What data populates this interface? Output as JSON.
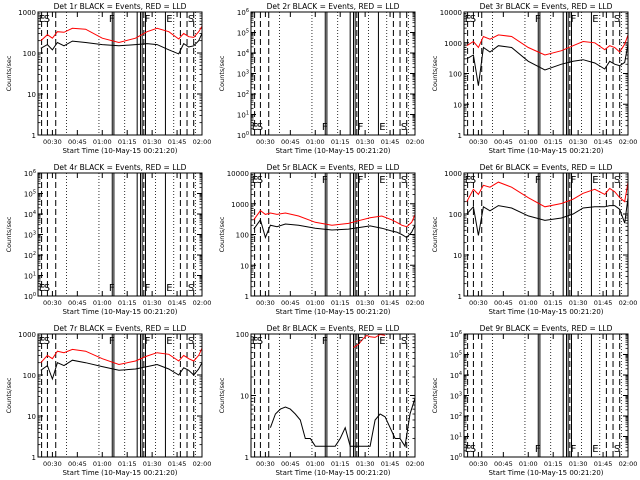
{
  "colors": {
    "events": "#000000",
    "lld": "#ff0000",
    "axes": "#000000",
    "background": "#ffffff"
  },
  "common": {
    "ylabel": "Counts/sec",
    "xlabel": "Start Time (10-May-15 00:21:20)",
    "xticks": [
      "00:30",
      "00:45",
      "01:00",
      "01:15",
      "01:30",
      "01:45",
      "02:00"
    ]
  },
  "chart_data": [
    {
      "type": "line",
      "title": "Det 1r BLACK = Events, RED = LLD",
      "ylabel": "Counts/sec",
      "xlabel": "Start Time (10-May-15 00:21:20)",
      "x_range": [
        "00:21:20",
        "02:00"
      ],
      "y_scale": "log",
      "ylim": [
        1,
        1000
      ],
      "yticks": [
        "1",
        "10",
        "100",
        "1000"
      ],
      "grid": false,
      "annotations": [
        "E",
        "S",
        "F",
        "F",
        "E",
        "S"
      ],
      "series": [
        {
          "color": "#000000",
          "x": [
            "00:23",
            "00:27",
            "00:30",
            "00:33",
            "00:37",
            "00:42",
            "00:50",
            "01:00",
            "01:10",
            "01:20",
            "01:27",
            "01:33",
            "01:40",
            "01:46",
            "01:49",
            "01:52",
            "01:55",
            "01:58",
            "02:00"
          ],
          "y": [
            130,
            160,
            120,
            180,
            150,
            195,
            180,
            160,
            150,
            160,
            170,
            160,
            120,
            95,
            170,
            140,
            150,
            200,
            300
          ]
        },
        {
          "color": "#ff0000",
          "x": [
            "00:23",
            "00:27",
            "00:30",
            "00:33",
            "00:37",
            "00:42",
            "00:50",
            "01:00",
            "01:10",
            "01:20",
            "01:27",
            "01:33",
            "01:40",
            "01:46",
            "01:49",
            "01:52",
            "01:55",
            "01:58",
            "02:00"
          ],
          "y": [
            200,
            280,
            230,
            330,
            320,
            400,
            380,
            230,
            180,
            230,
            330,
            400,
            330,
            220,
            300,
            250,
            240,
            330,
            450
          ]
        }
      ]
    },
    {
      "type": "line",
      "title": "Det 2r BLACK = Events, RED = LLD",
      "ylabel": "Counts/sec",
      "xlabel": "Start Time (10-May-15 00:21:20)",
      "x_range": [
        "00:21:20",
        "02:00"
      ],
      "y_scale": "log",
      "ylim": [
        1,
        1000000
      ],
      "yticks": [
        "10^0",
        "10^1",
        "10^2",
        "10^3",
        "10^4",
        "10^5",
        "10^6"
      ],
      "grid": false,
      "annotations": [
        "E",
        "S",
        "F",
        "F",
        "E",
        "S"
      ],
      "series": []
    },
    {
      "type": "line",
      "title": "Det 3r BLACK = Events, RED = LLD",
      "ylabel": "Counts/sec",
      "xlabel": "Start Time (10-May-15 00:21:20)",
      "x_range": [
        "00:21:20",
        "02:00"
      ],
      "y_scale": "log",
      "ylim": [
        1,
        10000
      ],
      "yticks": [
        "1",
        "10",
        "100",
        "1000",
        "10000"
      ],
      "grid": false,
      "annotations": [
        "E",
        "S",
        "F",
        "F",
        "E",
        "S"
      ],
      "series": [
        {
          "color": "#000000",
          "x": [
            "00:23",
            "00:27",
            "00:30",
            "00:33",
            "00:37",
            "00:42",
            "00:50",
            "01:00",
            "01:10",
            "01:20",
            "01:27",
            "01:33",
            "01:40",
            "01:46",
            "01:49",
            "01:52",
            "01:55",
            "01:58",
            "02:00"
          ],
          "y": [
            300,
            400,
            40,
            700,
            500,
            800,
            700,
            250,
            130,
            200,
            250,
            280,
            220,
            140,
            250,
            200,
            180,
            230,
            900
          ]
        },
        {
          "color": "#ff0000",
          "x": [
            "00:23",
            "00:27",
            "00:30",
            "00:33",
            "00:37",
            "00:42",
            "00:50",
            "01:00",
            "01:10",
            "01:20",
            "01:27",
            "01:33",
            "01:40",
            "01:46",
            "01:49",
            "01:52",
            "01:55",
            "01:58",
            "02:00"
          ],
          "y": [
            800,
            1100,
            700,
            1600,
            1300,
            1800,
            1600,
            700,
            400,
            550,
            800,
            1100,
            1000,
            600,
            800,
            700,
            500,
            900,
            1800
          ]
        }
      ]
    },
    {
      "type": "line",
      "title": "Det 4r BLACK = Events, RED = LLD",
      "ylabel": "Counts/sec",
      "xlabel": "Start Time (10-May-15 00:21:20)",
      "x_range": [
        "00:21:20",
        "02:00"
      ],
      "y_scale": "log",
      "ylim": [
        1,
        1000000
      ],
      "yticks": [
        "10^0",
        "10^1",
        "10^2",
        "10^3",
        "10^4",
        "10^5",
        "10^6"
      ],
      "grid": false,
      "annotations": [
        "E",
        "S",
        "F",
        "F",
        "E",
        "S"
      ],
      "series": []
    },
    {
      "type": "line",
      "title": "Det 5r BLACK = Events, RED = LLD",
      "ylabel": "Counts/sec",
      "xlabel": "Start Time (10-May-15 00:21:20)",
      "x_range": [
        "00:21:20",
        "02:00"
      ],
      "y_scale": "log",
      "ylim": [
        1,
        10000
      ],
      "yticks": [
        "1",
        "10",
        "100",
        "1000",
        "10000"
      ],
      "grid": false,
      "annotations": [
        "E",
        "S",
        "F",
        "F",
        "E",
        "S"
      ],
      "series": [
        {
          "color": "#000000",
          "x": [
            "00:23",
            "00:27",
            "00:30",
            "00:33",
            "00:37",
            "00:42",
            "00:50",
            "01:00",
            "01:10",
            "01:20",
            "01:27",
            "01:33",
            "01:40",
            "01:46",
            "01:49",
            "01:52",
            "01:55",
            "01:58",
            "02:00"
          ],
          "y": [
            150,
            300,
            80,
            200,
            180,
            220,
            200,
            160,
            140,
            150,
            170,
            190,
            160,
            130,
            120,
            100,
            80,
            120,
            200
          ]
        },
        {
          "color": "#ff0000",
          "x": [
            "00:23",
            "00:27",
            "00:30",
            "00:33",
            "00:37",
            "00:42",
            "00:50",
            "01:00",
            "01:10",
            "01:20",
            "01:27",
            "01:33",
            "01:40",
            "01:46",
            "01:49",
            "01:52",
            "01:55",
            "01:58",
            "02:00"
          ],
          "y": [
            300,
            600,
            450,
            500,
            450,
            500,
            400,
            250,
            200,
            230,
            290,
            350,
            400,
            300,
            250,
            200,
            180,
            250,
            450
          ]
        }
      ]
    },
    {
      "type": "line",
      "title": "Det 6r BLACK = Events, RED = LLD",
      "ylabel": "Counts/sec",
      "xlabel": "Start Time (10-May-15 00:21:20)",
      "x_range": [
        "00:21:20",
        "02:00"
      ],
      "y_scale": "log",
      "ylim": [
        1,
        1000
      ],
      "yticks": [
        "1",
        "10",
        "100",
        "1000"
      ],
      "grid": false,
      "annotations": [
        "E",
        "S",
        "F",
        "F",
        "E",
        "S"
      ],
      "series": [
        {
          "color": "#000000",
          "x": [
            "00:23",
            "00:27",
            "00:30",
            "00:33",
            "00:37",
            "00:42",
            "00:50",
            "01:00",
            "01:10",
            "01:20",
            "01:27",
            "01:33",
            "01:40",
            "01:46",
            "01:49",
            "01:52",
            "01:55",
            "01:58",
            "02:00"
          ],
          "y": [
            100,
            150,
            30,
            150,
            120,
            160,
            140,
            90,
            70,
            80,
            100,
            140,
            150,
            150,
            160,
            160,
            130,
            60,
            250
          ]
        },
        {
          "color": "#ff0000",
          "x": [
            "00:23",
            "00:27",
            "00:30",
            "00:33",
            "00:37",
            "00:42",
            "00:50",
            "01:00",
            "01:10",
            "01:20",
            "01:27",
            "01:33",
            "01:40",
            "01:46",
            "01:49",
            "01:52",
            "01:55",
            "01:58",
            "02:00"
          ],
          "y": [
            200,
            400,
            300,
            500,
            450,
            600,
            450,
            250,
            150,
            180,
            230,
            320,
            400,
            300,
            420,
            350,
            250,
            200,
            600
          ]
        }
      ]
    },
    {
      "type": "line",
      "title": "Det 7r BLACK = Events, RED = LLD",
      "ylabel": "Counts/sec",
      "xlabel": "Start Time (10-May-15 00:21:20)",
      "x_range": [
        "00:21:20",
        "02:00"
      ],
      "y_scale": "log",
      "ylim": [
        1,
        1000
      ],
      "yticks": [
        "1",
        "10",
        "100",
        "1000"
      ],
      "grid": false,
      "annotations": [
        "E",
        "S",
        "F",
        "F",
        "E",
        "S"
      ],
      "series": [
        {
          "color": "#000000",
          "x": [
            "00:23",
            "00:27",
            "00:30",
            "00:33",
            "00:37",
            "00:42",
            "00:50",
            "01:00",
            "01:10",
            "01:20",
            "01:27",
            "01:33",
            "01:40",
            "01:46",
            "01:49",
            "01:52",
            "01:55",
            "01:58",
            "02:00"
          ],
          "y": [
            130,
            170,
            80,
            200,
            170,
            230,
            200,
            160,
            130,
            140,
            160,
            180,
            140,
            100,
            150,
            130,
            100,
            140,
            200
          ]
        },
        {
          "color": "#ff0000",
          "x": [
            "00:23",
            "00:27",
            "00:30",
            "00:33",
            "00:37",
            "00:42",
            "00:50",
            "01:00",
            "01:10",
            "01:20",
            "01:27",
            "01:33",
            "01:40",
            "01:46",
            "01:49",
            "01:52",
            "01:55",
            "01:58",
            "02:00"
          ],
          "y": [
            200,
            300,
            250,
            380,
            350,
            420,
            380,
            250,
            180,
            220,
            290,
            350,
            320,
            220,
            300,
            250,
            220,
            300,
            450
          ]
        }
      ]
    },
    {
      "type": "line",
      "title": "Det 8r BLACK = Events, RED = LLD",
      "ylabel": "Counts/sec",
      "xlabel": "Start Time (10-May-15 00:21:20)",
      "x_range": [
        "00:21:20",
        "02:00"
      ],
      "y_scale": "log",
      "ylim": [
        1,
        100
      ],
      "yticks": [
        "1",
        "10",
        "100"
      ],
      "grid": false,
      "annotations": [
        "E",
        "S",
        "F",
        "F",
        "E",
        "S"
      ],
      "series": [
        {
          "color": "#000000",
          "x": [
            "00:33",
            "00:36",
            "00:39",
            "00:42",
            "00:45",
            "00:48",
            "00:51",
            "00:54",
            "00:57",
            "01:00",
            "01:03",
            "01:06",
            "01:09",
            "01:12",
            "01:15",
            "01:18",
            "01:21",
            "01:24",
            "01:27",
            "01:30",
            "01:33",
            "01:36",
            "01:39",
            "01:42",
            "01:45",
            "01:48",
            "01:51",
            "01:54",
            "01:57",
            "02:00"
          ],
          "y": [
            3,
            5,
            6,
            6.5,
            6,
            5,
            4,
            2,
            2,
            1.5,
            1.5,
            1.5,
            1.5,
            1.5,
            2,
            3,
            1.5,
            1.5,
            1.5,
            1.5,
            1.5,
            4,
            5,
            4.5,
            3,
            2,
            2,
            1.5,
            5,
            9
          ]
        },
        {
          "color": "#ff0000",
          "x": [
            "01:23",
            "01:26",
            "01:29",
            "01:31",
            "01:33",
            "01:36",
            "01:39",
            "01:42"
          ],
          "y": [
            60,
            68,
            85,
            95,
            90,
            88,
            98,
            95
          ]
        }
      ]
    },
    {
      "type": "line",
      "title": "Det 9r BLACK = Events, RED = LLD",
      "ylabel": "Counts/sec",
      "xlabel": "Start Time (10-May-15 00:21:20)",
      "x_range": [
        "00:21:20",
        "02:00"
      ],
      "y_scale": "log",
      "ylim": [
        1,
        1000000
      ],
      "yticks": [
        "10^0",
        "10^1",
        "10^2",
        "10^3",
        "10^4",
        "10^5",
        "10^6"
      ],
      "grid": false,
      "annotations": [
        "E",
        "S",
        "F",
        "F",
        "E",
        "S"
      ],
      "series": []
    }
  ]
}
